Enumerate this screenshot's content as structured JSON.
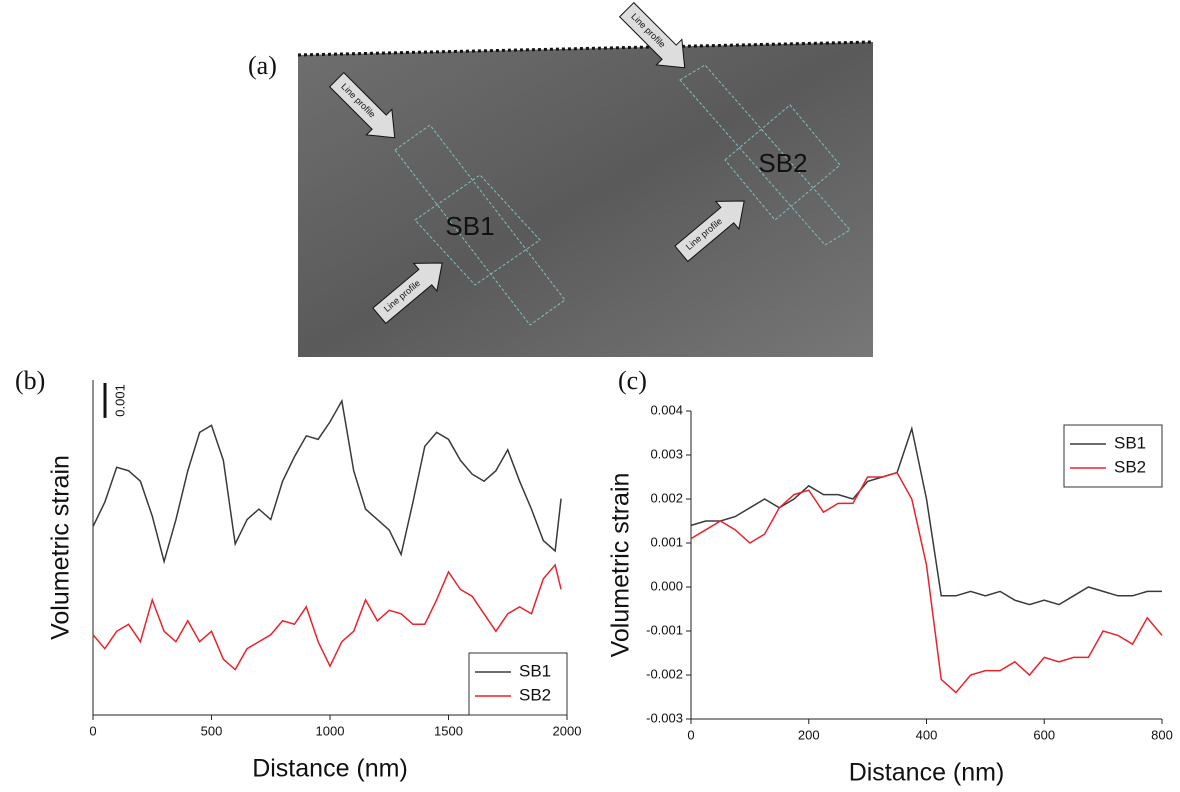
{
  "image_panel": {
    "label": "(a)",
    "annotations": [
      "SB1",
      "SB2"
    ],
    "arrow_labels": [
      "Line profile",
      "Line profile",
      "Line profile",
      "Line profile"
    ]
  },
  "chart_data": [
    {
      "type": "line",
      "panel_label": "(b)",
      "x_label": "Distance (nm)",
      "y_label": "Volumetric strain",
      "x": [
        0,
        50,
        100,
        150,
        200,
        250,
        300,
        350,
        400,
        450,
        500,
        550,
        600,
        650,
        700,
        750,
        800,
        850,
        900,
        950,
        1000,
        1050,
        1100,
        1150,
        1200,
        1250,
        1300,
        1350,
        1400,
        1450,
        1500,
        1550,
        1600,
        1650,
        1700,
        1750,
        1800,
        1850,
        1900,
        1950,
        1975
      ],
      "xlim": [
        0,
        2000
      ],
      "xticks": [
        0,
        500,
        1000,
        1500,
        2000
      ],
      "ylim": [
        0,
        0.0096
      ],
      "scale_bar": 0.001,
      "legend_position": "lower right",
      "series": [
        {
          "name": "SB1",
          "color": "#3a3a3a",
          "values": [
            0.0054,
            0.0061,
            0.0071,
            0.007,
            0.0067,
            0.0057,
            0.0044,
            0.0056,
            0.007,
            0.0081,
            0.0083,
            0.0073,
            0.0049,
            0.0056,
            0.0059,
            0.0056,
            0.0067,
            0.0074,
            0.008,
            0.0079,
            0.0084,
            0.009,
            0.007,
            0.0059,
            0.0056,
            0.0053,
            0.0046,
            0.0061,
            0.0077,
            0.0081,
            0.0079,
            0.0073,
            0.0069,
            0.0067,
            0.007,
            0.0076,
            0.0067,
            0.0059,
            0.005,
            0.0047,
            0.0062
          ]
        },
        {
          "name": "SB2",
          "color": "#e8232a",
          "values": [
            0.0023,
            0.0019,
            0.0024,
            0.0026,
            0.0021,
            0.0033,
            0.0024,
            0.0021,
            0.0027,
            0.0021,
            0.0024,
            0.0016,
            0.0013,
            0.0019,
            0.0021,
            0.0023,
            0.0027,
            0.0026,
            0.0031,
            0.0021,
            0.0014,
            0.0021,
            0.0024,
            0.0033,
            0.0027,
            0.003,
            0.0029,
            0.0026,
            0.0026,
            0.0033,
            0.0041,
            0.0036,
            0.0034,
            0.0029,
            0.0024,
            0.0029,
            0.0031,
            0.0029,
            0.0039,
            0.0043,
            0.0036
          ]
        }
      ]
    },
    {
      "type": "line",
      "panel_label": "(c)",
      "x_label": "Distance (nm)",
      "y_label": "Volumetric strain",
      "x": [
        0,
        25,
        50,
        75,
        100,
        125,
        150,
        175,
        200,
        225,
        250,
        275,
        300,
        325,
        350,
        375,
        400,
        425,
        450,
        475,
        500,
        525,
        550,
        575,
        600,
        625,
        650,
        675,
        700,
        725,
        750,
        775,
        800
      ],
      "xlim": [
        0,
        800
      ],
      "xticks": [
        0,
        200,
        400,
        600,
        800
      ],
      "ylim": [
        -0.003,
        0.004
      ],
      "yticks": [
        -0.003,
        -0.002,
        -0.001,
        {
          "value": 0,
          "label": "0.000"
        },
        0.001,
        0.002,
        0.003,
        0.004
      ],
      "legend_position": "upper right",
      "series": [
        {
          "name": "SB1",
          "color": "#3a3a3a",
          "values": [
            0.0014,
            0.0015,
            0.0015,
            0.0016,
            0.0018,
            0.002,
            0.0018,
            0.002,
            0.0023,
            0.0021,
            0.0021,
            0.002,
            0.0024,
            0.0025,
            0.0026,
            0.0036,
            0.002,
            -0.0002,
            -0.0002,
            -0.0001,
            -0.0002,
            -0.0001,
            -0.0003,
            -0.0004,
            -0.0003,
            -0.0004,
            -0.0002,
            0.0,
            -0.0001,
            -0.0002,
            -0.0002,
            -0.0001,
            -0.0001
          ]
        },
        {
          "name": "SB2",
          "color": "#e8232a",
          "values": [
            0.0011,
            0.0013,
            0.0015,
            0.0013,
            0.001,
            0.0012,
            0.0018,
            0.0021,
            0.0022,
            0.0017,
            0.0019,
            0.0019,
            0.0025,
            0.0025,
            0.0026,
            0.002,
            0.0005,
            -0.0021,
            -0.0024,
            -0.002,
            -0.0019,
            -0.0019,
            -0.0017,
            -0.002,
            -0.0016,
            -0.0017,
            -0.0016,
            -0.0016,
            -0.001,
            -0.0011,
            -0.0013,
            -0.0007,
            -0.0011
          ]
        }
      ]
    }
  ]
}
